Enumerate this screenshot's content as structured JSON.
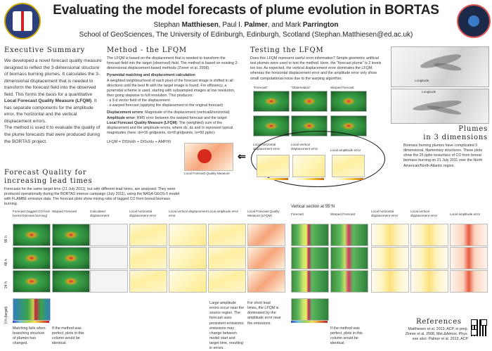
{
  "header": {
    "title": "Evaluating the model forecasts of plume evolution in BORTAS",
    "authors_prefix": "Stephan ",
    "author1_bold": "Matthiesen",
    "authors_mid1": ", Paul I. ",
    "author2_bold": "Palmer",
    "authors_mid2": ", and Mark ",
    "author3_bold": "Parrington",
    "affiliation": "School of GeoSciences, The University of Edinburgh, Edinburgh, Scotland (Stephan.Matthiesen@ed.ac.uk)"
  },
  "executive_summary": {
    "heading": "Executive Summary",
    "text1": "We developed a novel forecast quality measure designed to reflect the 3-dimensional structure of biomass burning plumes. It calculates the 3-dimensional displacement that is needed to transform the forecast field into the observed field. This forms the basis for a quantitative",
    "text_bold": "Local Forecast Quality Measure (LFQM)",
    "text2": ". It has separate components for the amplitude error, the horizontal and the vertical displacement errors.",
    "text3": "The method is used it to evaluate the quality of the plume forecasts that were produced during the BORTAS project."
  },
  "method": {
    "heading": "Method - the LFQM",
    "p1": "The LFQM is based on the displacement that is needed to transform the forecast field into the target (observed) field. The method is based on existing 2-dimensional displacement-based methods (Zinner et al. 2008).",
    "h_pyr": "Pyramidal matching and displacement calculation",
    "p2": "A weighted neighbourhood of each pixel of the forecast image is shifted in all directions until the best fit with the target image is found. For efficiency, a pyramidal scheme is used, starting with subsampled images at low resolution, then going stepwise to full resolution. This produces:",
    "li1": "- a 3-d vector field of the displacement",
    "li2": "- a warped forecast (applying the displacement to the original forecast)",
    "def1_b": "Displacement errors",
    "def1": ": Magnitude of the displacement (vertical&horizontal)",
    "def2_b": "Amplitude error",
    "def2": ": RMS error between the warped forecast and the target",
    "def3_b": "Local Forecast Quality Measure (LFQM)",
    "def3": ": The (weighted) sum of the displacement and the amplitude errors, where dx, dz and Ix represent typical magnitudes (here: dx=16 gridpoints, dz=8 gridpoints, Ix=50 ppbv):",
    "formula": "LFQM = DISh/dh + DISv/dv + AMP/I0"
  },
  "testing": {
    "heading": "Testing the LFQM",
    "p": "Does this LFQM represent useful error information? Simple geometric artificial test plumes were used to test the method. Here, the \"forecast plume\" is 2 levels too low. As expected, the vertical displacement error dominates the LFQM, whereas the horizontal displacement error and the amplitude error only show small computational noise due to the warping algorithm.",
    "labels": [
      "\"Forecast\"",
      "\"Observation\"",
      "Warped forecast"
    ],
    "err_labels": [
      "Local horizontal displacement error",
      "Local vertical displacement error",
      "Local amplitude error"
    ],
    "lfqm_label": "Local Forecast Quality Measure"
  },
  "plumes": {
    "heading1": "Plumes",
    "heading2": "in 3 dimensions",
    "p": "Biomass burning plumes have complicated 3 dimensional, filamentary structures. These plots show the 25 ppbv isosurface of CO from boreal biomass burning on 21 July 2011 over the North American/North Atlantic region.",
    "axis1": "Longitude",
    "axis2": "Longitude"
  },
  "forecast_quality": {
    "heading1": "Forecast Quality for",
    "heading2": "increasing lead times",
    "p": "Forecasts for the same target time (21 July 2011), but with different lead times, are analysed. They were produced operationally during the BORTAS intense campaign (July 2011), using the NASA GEOS-5 model with FLAMBE emission data. The forecast plots show mixing ratio of tagged CO from boreal biomass burning.",
    "col_headers": [
      "Forecast (tagged CO from boreal biomass burning)",
      "Warped Forecast",
      "Calculated displacement",
      "Local horizontal displacement error",
      "Local vertical displacement error",
      "Local amplitude error",
      "Local Forecast Quality Measure (LFQM)"
    ],
    "row_labels": [
      "96 h",
      "48 h",
      "24 h",
      "0 h (target)"
    ],
    "note1": "Matching fails when branching structure of plumes has changed.",
    "note2": "If the method was perfect, plots in this column would be identical.",
    "note3": "Large amplitude errors occur near the source region. The forecast uses persistent emissions; emissions may change between model start and target time, resulting in errors.",
    "note4": "For short lead times, the LFQM is dominated by the amplitude error near the emissions."
  },
  "vertical": {
    "heading": "Vertical section at 55°N",
    "col_headers": [
      "Forecast",
      "Warped Forecast",
      "Local horizontal displacement error",
      "Local vertical displacement error",
      "Local amplitude error"
    ],
    "note": "If the method was perfect, plots in this column would be identical."
  },
  "references": {
    "heading": "References",
    "lines": [
      "Matthiesen et al. 2013, ACP, in prep.",
      "Zinner et al. 2008, Met.&Atmos. Phys.",
      "see also: Palmer et al. 2013, ACP"
    ]
  },
  "colors": {
    "accent": "#2c3f7c",
    "plume_red": "#cc2244",
    "green": "#3aa34a"
  },
  "icons": {
    "left_logo": "university-crest-icon",
    "right_logo": "bortas-mission-logo-icon",
    "qr": "qr-code-icon",
    "arrow": "double-arrow-left-icon"
  }
}
